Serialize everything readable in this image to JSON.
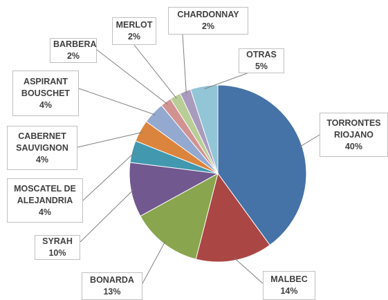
{
  "chart_data": {
    "type": "pie",
    "categories": [
      "TORRONTES RIOJANO",
      "MALBEC",
      "BONARDA",
      "SYRAH",
      "MOSCATEL DE ALEJANDRIA",
      "CABERNET SAUVIGNON",
      "ASPIRANT BOUSCHET",
      "BARBERA",
      "MERLOT",
      "CHARDONNAY",
      "OTRAS"
    ],
    "values": [
      40,
      14,
      13,
      10,
      4,
      4,
      4,
      2,
      2,
      2,
      5
    ],
    "value_labels": [
      "40%",
      "14%",
      "13%",
      "10%",
      "4%",
      "4%",
      "4%",
      "2%",
      "2%",
      "2%",
      "5%"
    ],
    "colors": [
      "#4572a7",
      "#aa4643",
      "#89a54e",
      "#71588f",
      "#4198af",
      "#db843d",
      "#93a9cf",
      "#d19392",
      "#b9cd96",
      "#a99bbd",
      "#92c5d6"
    ]
  }
}
